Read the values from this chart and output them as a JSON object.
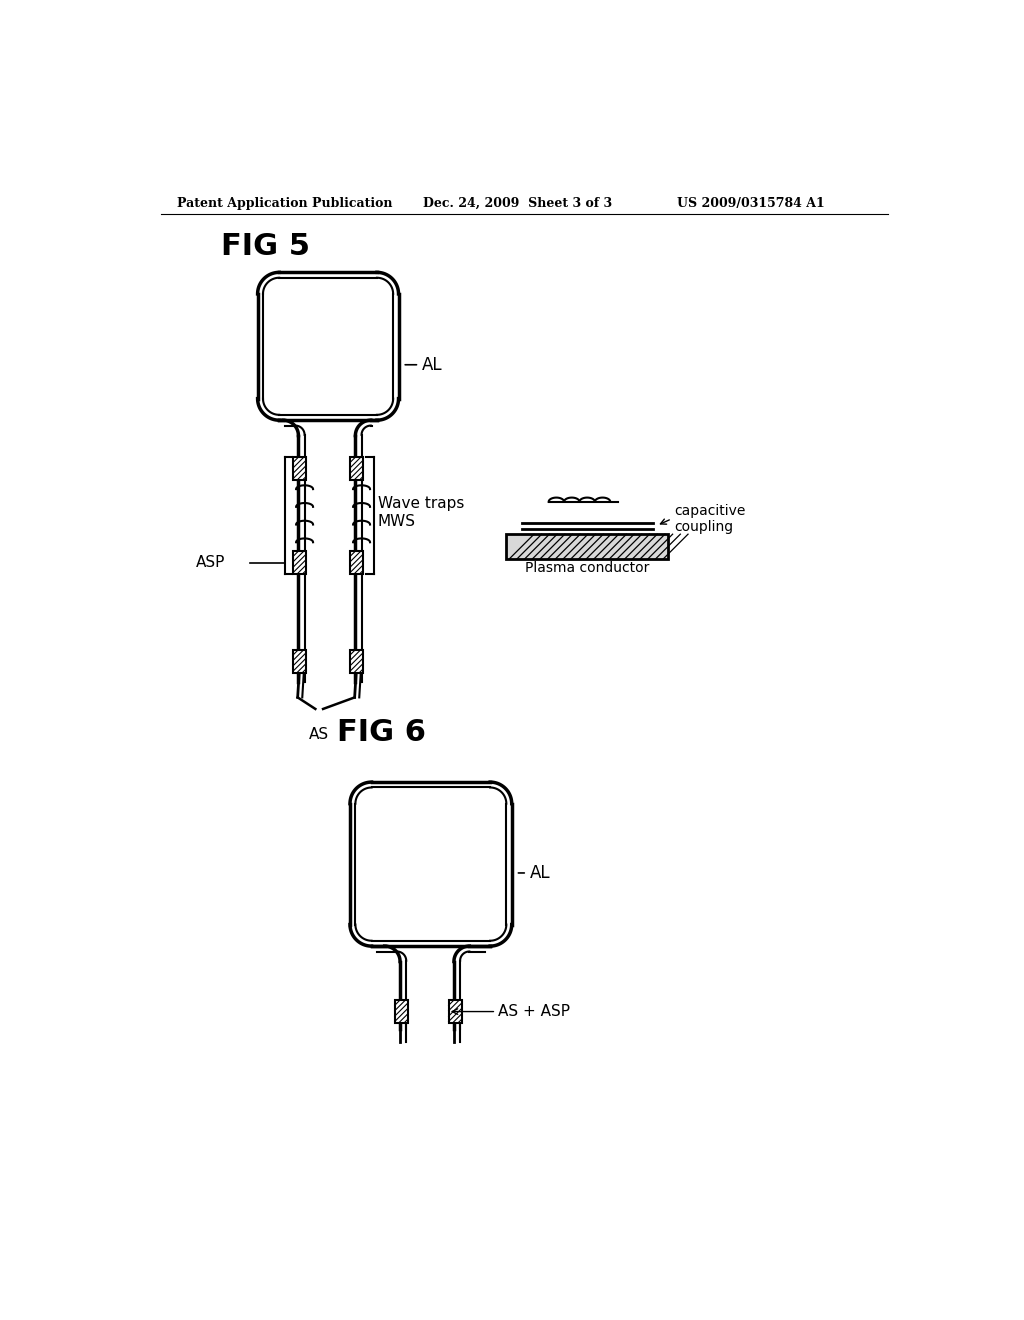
{
  "background_color": "#ffffff",
  "header_left": "Patent Application Publication",
  "header_center": "Dec. 24, 2009  Sheet 3 of 3",
  "header_right": "US 2009/0315784 A1",
  "fig5_label": "FIG 5",
  "fig6_label": "FIG 6",
  "label_AL_fig5": "AL",
  "label_AL_fig6": "AL",
  "label_ASP": "ASP",
  "label_AS": "AS",
  "label_wave_traps": "Wave traps\nMWS",
  "label_capacitive": "capacitive\ncoupling",
  "label_plasma": "Plasma conductor",
  "label_AS_ASP": "AS + ASP"
}
